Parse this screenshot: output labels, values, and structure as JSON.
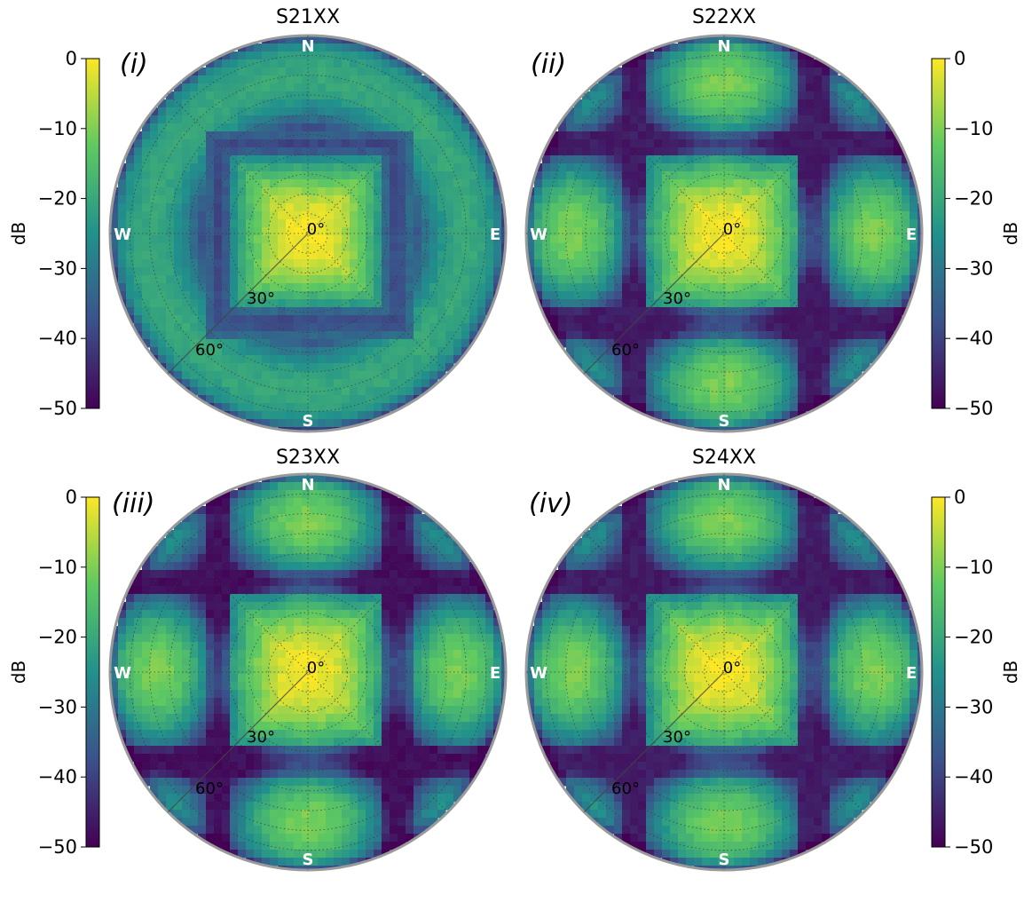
{
  "figure": {
    "colorbar_label": "dB",
    "colorbar_ticks": [
      "0",
      "−10",
      "−20",
      "−30",
      "−40",
      "−50"
    ],
    "compass": {
      "north": "N",
      "south": "S",
      "east": "E",
      "west": "W"
    },
    "zenith_labels": [
      "0°",
      "30°",
      "60°"
    ],
    "colormap": "viridis",
    "colormap_stops": [
      "#440154",
      "#3b528b",
      "#21918c",
      "#5ec962",
      "#fde725"
    ]
  },
  "chart_data": [
    {
      "type": "heatmap",
      "projection": "polar",
      "title": "S21XX",
      "panel_label": "(i)",
      "colorbar_position": "left",
      "clim": [
        -50,
        0
      ],
      "units": "dB",
      "pattern": "central-square-plus-surrounding-ring",
      "center_level": 0,
      "null_level": -40,
      "ring_level": -20
    },
    {
      "type": "heatmap",
      "projection": "polar",
      "title": "S22XX",
      "panel_label": "(ii)",
      "colorbar_position": "right",
      "clim": [
        -50,
        0
      ],
      "units": "dB",
      "pattern": "central-square-plus-side-lobes",
      "center_level": 0,
      "null_level": -40,
      "ring_level": -18
    },
    {
      "type": "heatmap",
      "projection": "polar",
      "title": "S23XX",
      "panel_label": "(iii)",
      "colorbar_position": "left",
      "clim": [
        -50,
        0
      ],
      "units": "dB",
      "pattern": "central-square-plus-side-lobes",
      "center_level": 0,
      "null_level": -42,
      "ring_level": -18
    },
    {
      "type": "heatmap",
      "projection": "polar",
      "title": "S24XX",
      "panel_label": "(iv)",
      "colorbar_position": "right",
      "clim": [
        -50,
        0
      ],
      "units": "dB",
      "pattern": "central-square-plus-side-lobes",
      "center_level": 0,
      "null_level": -40,
      "ring_level": -17
    }
  ]
}
